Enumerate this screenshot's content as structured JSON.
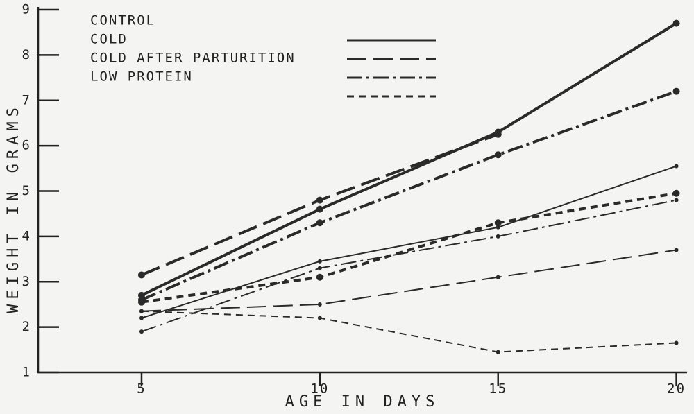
{
  "chart_data": {
    "type": "line",
    "x_label": "AGE IN DAYS",
    "y_label": "WEIGHT IN GRAMS",
    "x": [
      5,
      10,
      15,
      20
    ],
    "xlim": [
      2.1,
      20.3
    ],
    "xticks": [
      5,
      10,
      15,
      20
    ],
    "ylim": [
      1,
      9
    ],
    "yticks": [
      1,
      2,
      3,
      4,
      5,
      6,
      7,
      8,
      9
    ],
    "grid": false,
    "legend": "upper left",
    "series": [
      {
        "name": "CONTROL",
        "color": "#2a2a2a",
        "line_style": "solid",
        "weight": "thick",
        "values": [
          2.7,
          4.6,
          6.3,
          8.7
        ]
      },
      {
        "name": "COLD",
        "color": "#2a2a2a",
        "line_style": "long-dash",
        "weight": "thick",
        "values": [
          3.15,
          4.8,
          6.25,
          null
        ]
      },
      {
        "name": "COLD AFTER PARTURITION",
        "color": "#2a2a2a",
        "line_style": "dash-dot",
        "weight": "thick",
        "values": [
          2.6,
          4.3,
          5.8,
          7.2
        ]
      },
      {
        "name": "LOW PROTEIN",
        "color": "#2a2a2a",
        "line_style": "short-dash",
        "weight": "thick",
        "values": [
          2.55,
          3.1,
          4.3,
          4.95
        ]
      },
      {
        "name": "CONTROL",
        "color": "#2a2a2a",
        "line_style": "solid",
        "weight": "thin",
        "values": [
          2.2,
          3.45,
          4.2,
          5.55
        ]
      },
      {
        "name": "COLD AFTER PARTURITION",
        "color": "#2a2a2a",
        "line_style": "dash-dot",
        "weight": "thin",
        "values": [
          1.9,
          3.3,
          4.0,
          4.8
        ]
      },
      {
        "name": "COLD",
        "color": "#2a2a2a",
        "line_style": "long-dash",
        "weight": "thin",
        "values": [
          2.35,
          2.5,
          3.1,
          3.7
        ]
      },
      {
        "name": "LOW PROTEIN",
        "color": "#2a2a2a",
        "line_style": "short-dash",
        "weight": "thin",
        "values": [
          2.35,
          2.2,
          1.45,
          1.65
        ]
      }
    ]
  }
}
